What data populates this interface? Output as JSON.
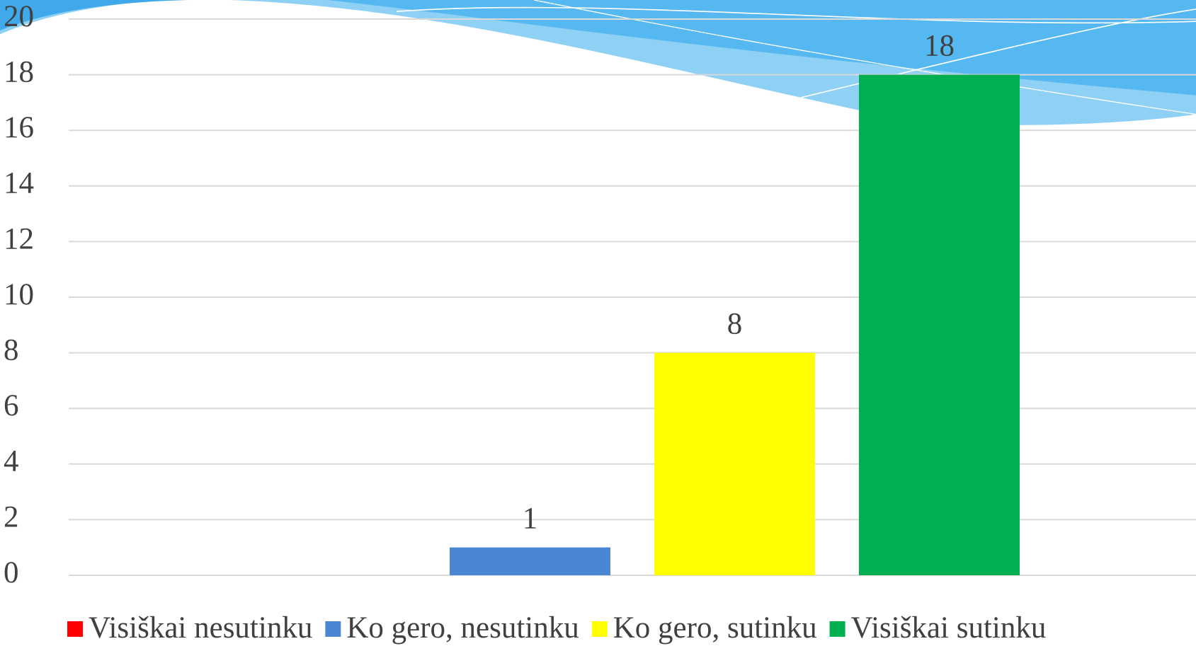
{
  "chart_data": {
    "type": "bar",
    "categories": [
      null
    ],
    "series": [
      {
        "name": "Visiškai nesutinku",
        "color": "#ff0000",
        "values": [
          0
        ]
      },
      {
        "name": "Ko gero, nesutinku",
        "color": "#4a86d2",
        "values": [
          1
        ]
      },
      {
        "name": "Ko gero, sutinku",
        "color": "#ffff00",
        "values": [
          8
        ]
      },
      {
        "name": "Visiškai sutinku",
        "color": "#00b050",
        "values": [
          18
        ]
      }
    ],
    "ylim": [
      0,
      20
    ],
    "yticks": [
      0,
      2,
      4,
      6,
      8,
      10,
      12,
      14,
      16,
      18,
      20
    ],
    "grid": true,
    "legend": "bottom"
  }
}
